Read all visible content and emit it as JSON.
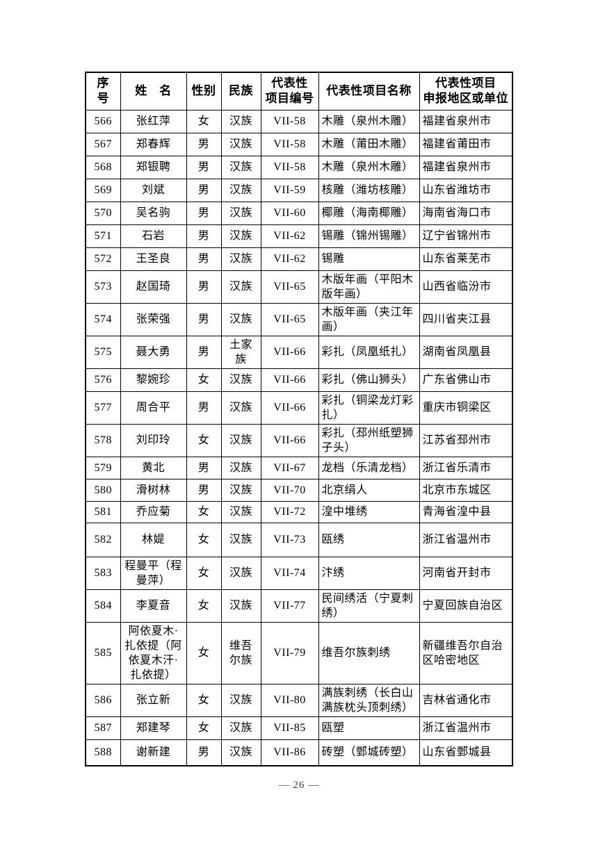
{
  "document": {
    "page_number": "— 26 —"
  },
  "table": {
    "headers": [
      "序\n号",
      "姓　名",
      "性别",
      "民族",
      "代表性\n项目编号",
      "代表性项目名称",
      "代表性项目\n申报地区或单位"
    ],
    "rows": [
      {
        "no": "566",
        "name": "张红萍",
        "gender": "女",
        "ethnicity": "汉族",
        "project_no": "VII-58",
        "project_name": "木雕（泉州木雕）",
        "region": "福建省泉州市"
      },
      {
        "no": "567",
        "name": "郑春辉",
        "gender": "男",
        "ethnicity": "汉族",
        "project_no": "VII-58",
        "project_name": "木雕（莆田木雕）",
        "region": "福建省莆田市"
      },
      {
        "no": "568",
        "name": "郑银聘",
        "gender": "男",
        "ethnicity": "汉族",
        "project_no": "VII-58",
        "project_name": "木雕（泉州木雕）",
        "region": "福建省泉州市"
      },
      {
        "no": "569",
        "name": "刘斌",
        "gender": "男",
        "ethnicity": "汉族",
        "project_no": "VII-59",
        "project_name": "核雕（潍坊核雕）",
        "region": "山东省潍坊市"
      },
      {
        "no": "570",
        "name": "吴名驹",
        "gender": "男",
        "ethnicity": "汉族",
        "project_no": "VII-60",
        "project_name": "椰雕（海南椰雕）",
        "region": "海南省海口市"
      },
      {
        "no": "571",
        "name": "石岩",
        "gender": "男",
        "ethnicity": "汉族",
        "project_no": "VII-62",
        "project_name": "锡雕（锦州锡雕）",
        "region": "辽宁省锦州市"
      },
      {
        "no": "572",
        "name": "王圣良",
        "gender": "男",
        "ethnicity": "汉族",
        "project_no": "VII-62",
        "project_name": "锡雕",
        "region": "山东省莱芜市"
      },
      {
        "no": "573",
        "name": "赵国琦",
        "gender": "男",
        "ethnicity": "汉族",
        "project_no": "VII-65",
        "project_name": "木版年画（平阳木版年画）",
        "region": "山西省临汾市"
      },
      {
        "no": "574",
        "name": "张荣强",
        "gender": "男",
        "ethnicity": "汉族",
        "project_no": "VII-65",
        "project_name": "木版年画（夹江年画）",
        "region": "四川省夹江县"
      },
      {
        "no": "575",
        "name": "聂大勇",
        "gender": "男",
        "ethnicity": "土家族",
        "project_no": "VII-66",
        "project_name": "彩扎（凤凰纸扎）",
        "region": "湖南省凤凰县"
      },
      {
        "no": "576",
        "name": "黎婉珍",
        "gender": "女",
        "ethnicity": "汉族",
        "project_no": "VII-66",
        "project_name": "彩扎（佛山狮头）",
        "region": "广东省佛山市"
      },
      {
        "no": "577",
        "name": "周合平",
        "gender": "男",
        "ethnicity": "汉族",
        "project_no": "VII-66",
        "project_name": "彩扎（铜梁龙灯彩扎）",
        "region": "重庆市铜梁区"
      },
      {
        "no": "578",
        "name": "刘印玲",
        "gender": "女",
        "ethnicity": "汉族",
        "project_no": "VII-66",
        "project_name": "彩扎（邳州纸塑狮子头）",
        "region": "江苏省邳州市"
      },
      {
        "no": "579",
        "name": "黄北",
        "gender": "男",
        "ethnicity": "汉族",
        "project_no": "VII-67",
        "project_name": "龙档（乐清龙档）",
        "region": "浙江省乐清市"
      },
      {
        "no": "580",
        "name": "滑树林",
        "gender": "男",
        "ethnicity": "汉族",
        "project_no": "VII-70",
        "project_name": "北京绢人",
        "region": "北京市东城区"
      },
      {
        "no": "581",
        "name": "乔应菊",
        "gender": "女",
        "ethnicity": "汉族",
        "project_no": "VII-72",
        "project_name": "湟中堆绣",
        "region": "青海省湟中县"
      },
      {
        "no": "582",
        "name": "林媞",
        "gender": "女",
        "ethnicity": "汉族",
        "project_no": "VII-73",
        "project_name": "瓯绣",
        "region": "浙江省温州市"
      },
      {
        "no": "583",
        "name": "程曼平（程曼萍）",
        "gender": "女",
        "ethnicity": "汉族",
        "project_no": "VII-74",
        "project_name": "汴绣",
        "region": "河南省开封市"
      },
      {
        "no": "584",
        "name": "李夏音",
        "gender": "女",
        "ethnicity": "汉族",
        "project_no": "VII-77",
        "project_name": "民间绣活（宁夏刺绣）",
        "region": "宁夏回族自治区"
      },
      {
        "no": "585",
        "name": "阿依夏木·扎依提（阿依夏木汗·扎依提）",
        "gender": "女",
        "ethnicity": "维吾尔族",
        "project_no": "VII-79",
        "project_name": "维吾尔族刺绣",
        "region": "新疆维吾尔自治区哈密地区"
      },
      {
        "no": "586",
        "name": "张立新",
        "gender": "女",
        "ethnicity": "汉族",
        "project_no": "VII-80",
        "project_name": "满族刺绣（长白山满族枕头顶刺绣）",
        "region": "吉林省通化市"
      },
      {
        "no": "587",
        "name": "郑建琴",
        "gender": "女",
        "ethnicity": "汉族",
        "project_no": "VII-85",
        "project_name": "瓯塑",
        "region": "浙江省温州市"
      },
      {
        "no": "588",
        "name": "谢新建",
        "gender": "男",
        "ethnicity": "汉族",
        "project_no": "VII-86",
        "project_name": "砖塑（鄄城砖塑）",
        "region": "山东省鄄城县"
      }
    ]
  }
}
